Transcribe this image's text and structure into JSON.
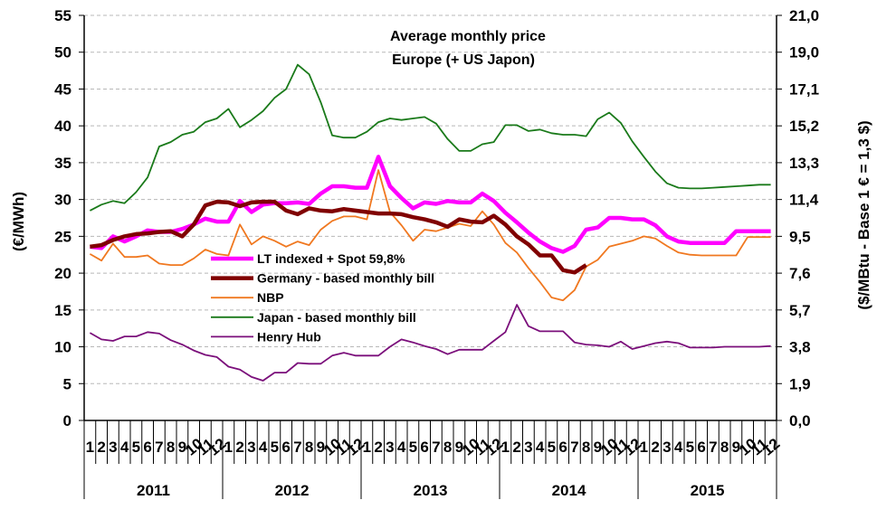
{
  "chart_data": {
    "type": "line",
    "title": "Average monthly price",
    "subtitle": "Europe (+ US Japon)",
    "ylabel": "(€/MWh)",
    "y2label": "($/MBtu - Base 1 € = 1,3 $)",
    "xlabel": "",
    "ylim": [
      0,
      55
    ],
    "yticks": [
      "0",
      "5",
      "10",
      "15",
      "20",
      "25",
      "30",
      "35",
      "40",
      "45",
      "50",
      "55"
    ],
    "y2ticks": [
      "0,0",
      "1,9",
      "3,8",
      "5,7",
      "7,6",
      "9,5",
      "11,4",
      "13,3",
      "15,2",
      "17,1",
      "19,0",
      "21,0"
    ],
    "grid": true,
    "legend_position": "center-left",
    "years": [
      "2011",
      "2012",
      "2013",
      "2014",
      "2015"
    ],
    "month_labels": [
      "1",
      "2",
      "3",
      "4",
      "5",
      "6",
      "7",
      "8",
      "9",
      "10",
      "11",
      "12"
    ],
    "x_count": 60,
    "series": [
      {
        "name": "LT indexed + Spot 59,8%",
        "color": "#ff00ff",
        "width": "thick",
        "values": [
          23.6,
          23.4,
          25.0,
          24.3,
          25.0,
          25.8,
          25.6,
          25.6,
          26.0,
          26.6,
          27.4,
          27.0,
          27.0,
          29.8,
          28.3,
          29.3,
          29.5,
          29.5,
          29.6,
          29.4,
          30.8,
          31.8,
          31.8,
          31.6,
          31.6,
          35.8,
          31.8,
          30.2,
          28.8,
          29.6,
          29.4,
          29.8,
          29.6,
          29.6,
          30.8,
          29.8,
          28.2,
          26.9,
          25.5,
          24.3,
          23.4,
          22.9,
          23.7,
          25.9,
          26.2,
          27.5,
          27.5,
          27.3,
          27.3,
          26.5,
          25.0,
          24.3,
          24.1,
          24.1,
          24.1,
          24.1,
          25.7,
          25.7,
          25.7,
          25.7
        ]
      },
      {
        "name": "Germany -  based monthly bill",
        "color": "#800000",
        "width": "thick",
        "values": [
          23.6,
          23.8,
          24.5,
          25.0,
          25.3,
          25.4,
          25.6,
          25.7,
          25.0,
          26.6,
          29.2,
          29.7,
          29.6,
          29.1,
          29.6,
          29.7,
          29.7,
          28.5,
          28.0,
          28.8,
          28.5,
          28.4,
          28.7,
          28.5,
          28.3,
          28.1,
          28.1,
          28.0,
          27.6,
          27.3,
          26.9,
          26.3,
          27.3,
          27.0,
          26.9,
          27.8,
          26.6,
          25.0,
          23.9,
          22.4,
          22.4,
          20.4,
          20.1,
          21.1,
          null,
          null,
          null,
          null,
          null,
          null,
          null,
          null,
          null,
          null,
          null,
          null,
          null,
          null,
          null,
          null
        ]
      },
      {
        "name": "NBP",
        "color": "#f07820",
        "width": "thin",
        "values": [
          22.6,
          21.7,
          24.0,
          22.2,
          22.2,
          22.4,
          21.3,
          21.1,
          21.1,
          22.0,
          23.2,
          22.6,
          22.4,
          26.6,
          23.9,
          25.0,
          24.4,
          23.6,
          24.3,
          23.8,
          25.9,
          27.1,
          27.7,
          27.7,
          27.3,
          34.0,
          28.3,
          26.5,
          24.4,
          25.9,
          25.7,
          26.2,
          26.7,
          26.4,
          28.4,
          26.6,
          24.1,
          22.8,
          20.7,
          18.8,
          16.7,
          16.3,
          17.7,
          20.9,
          21.8,
          23.6,
          24.0,
          24.4,
          25.0,
          24.7,
          23.7,
          22.8,
          22.5,
          22.4,
          22.4,
          22.4,
          22.4,
          24.9,
          24.9,
          24.9
        ]
      },
      {
        "name": "Japan - based monthly bill",
        "color": "#1a7a1a",
        "width": "thin",
        "values": [
          28.5,
          29.3,
          29.8,
          29.5,
          31.0,
          33.0,
          37.2,
          37.8,
          38.8,
          39.2,
          40.5,
          41.0,
          42.3,
          39.8,
          40.8,
          42.0,
          43.8,
          45.0,
          48.3,
          47.0,
          43.2,
          38.7,
          38.4,
          38.4,
          39.2,
          40.5,
          41.0,
          40.8,
          41.0,
          41.2,
          40.3,
          38.2,
          36.6,
          36.6,
          37.5,
          37.8,
          40.1,
          40.1,
          39.3,
          39.5,
          39.0,
          38.8,
          38.8,
          38.6,
          40.9,
          41.8,
          40.4,
          37.9,
          35.8,
          33.8,
          32.2,
          31.6,
          31.5,
          31.5,
          31.6,
          31.7,
          31.8,
          31.9,
          32.0,
          32.0
        ]
      },
      {
        "name": "Henry Hub",
        "color": "#7b0f7b",
        "width": "thin",
        "values": [
          11.9,
          11.0,
          10.8,
          11.4,
          11.4,
          12.0,
          11.8,
          10.9,
          10.3,
          9.5,
          8.9,
          8.6,
          7.3,
          6.9,
          5.9,
          5.4,
          6.5,
          6.5,
          7.8,
          7.7,
          7.7,
          8.8,
          9.2,
          8.8,
          8.8,
          8.8,
          10.0,
          11.0,
          10.6,
          10.1,
          9.7,
          9.0,
          9.6,
          9.6,
          9.6,
          10.8,
          12.0,
          15.7,
          12.8,
          12.1,
          12.1,
          12.1,
          10.6,
          10.3,
          10.2,
          10.0,
          10.7,
          9.7,
          10.1,
          10.5,
          10.7,
          10.5,
          9.9,
          9.9,
          9.9,
          10.0,
          10.0,
          10.0,
          10.0,
          10.1
        ]
      }
    ]
  }
}
